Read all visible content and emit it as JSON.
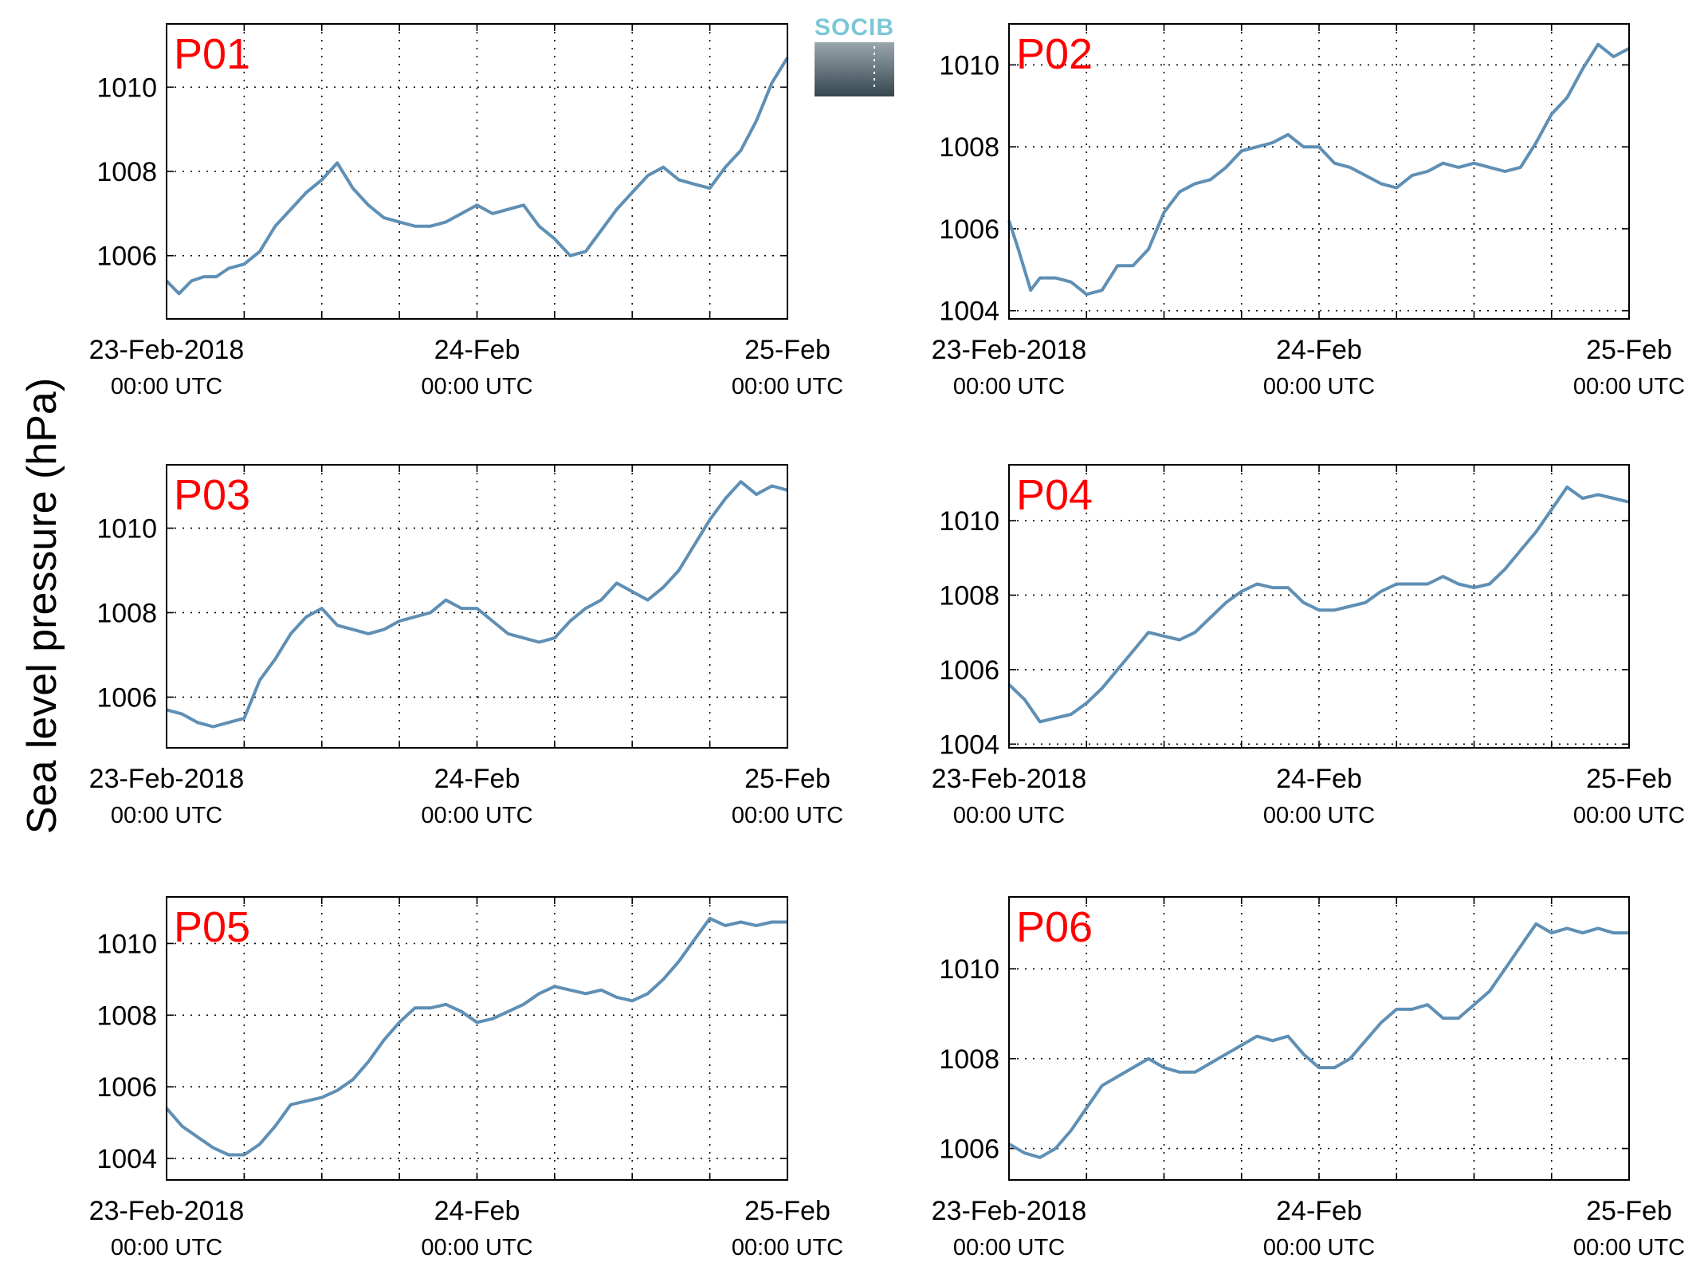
{
  "figure": {
    "ylabel": "Sea level pressure (hPa)",
    "logo_text": "SOCIB"
  },
  "colors": {
    "line": "#5f8fb4",
    "panel_label": "#ff0000",
    "grid": "#000000",
    "logo_text": "#7cc7d6",
    "logo_top": "#9aa7ad",
    "logo_bottom": "#35464f"
  },
  "chart_data": [
    {
      "type": "line",
      "label": "P01",
      "ylim": [
        1004.5,
        1011.5
      ],
      "yticks": [
        1006,
        1008,
        1010
      ],
      "x_days": [
        0,
        0.04,
        0.08,
        0.12,
        0.16,
        0.2,
        0.25,
        0.3,
        0.35,
        0.4,
        0.45,
        0.5,
        0.55,
        0.6,
        0.65,
        0.7,
        0.75,
        0.8,
        0.85,
        0.9,
        0.95,
        1.0,
        1.05,
        1.1,
        1.15,
        1.2,
        1.25,
        1.3,
        1.35,
        1.4,
        1.45,
        1.5,
        1.55,
        1.6,
        1.65,
        1.7,
        1.75,
        1.8,
        1.85,
        1.9,
        1.95,
        2.0
      ],
      "values": [
        1005.4,
        1005.1,
        1005.4,
        1005.5,
        1005.5,
        1005.7,
        1005.8,
        1006.1,
        1006.7,
        1007.1,
        1007.5,
        1007.8,
        1008.2,
        1007.6,
        1007.2,
        1006.9,
        1006.8,
        1006.7,
        1006.7,
        1006.8,
        1007.0,
        1007.2,
        1007.0,
        1007.1,
        1007.2,
        1006.7,
        1006.4,
        1006.0,
        1006.1,
        1006.6,
        1007.1,
        1007.5,
        1007.9,
        1008.1,
        1007.8,
        1007.7,
        1007.6,
        1008.1,
        1008.5,
        1009.2,
        1010.1,
        1010.7
      ],
      "x_ticks": [
        {
          "line1": "23-Feb-2018",
          "line2": "00:00 UTC"
        },
        {
          "line1": "24-Feb",
          "line2": "00:00 UTC"
        },
        {
          "line1": "25-Feb",
          "line2": "00:00 UTC"
        }
      ]
    },
    {
      "type": "line",
      "label": "P02",
      "ylim": [
        1003.8,
        1011.0
      ],
      "yticks": [
        1004,
        1006,
        1008,
        1010
      ],
      "x_days": [
        0,
        0.03,
        0.07,
        0.1,
        0.15,
        0.2,
        0.25,
        0.3,
        0.35,
        0.4,
        0.45,
        0.5,
        0.55,
        0.6,
        0.65,
        0.7,
        0.75,
        0.8,
        0.85,
        0.9,
        0.95,
        1.0,
        1.05,
        1.1,
        1.15,
        1.2,
        1.25,
        1.3,
        1.35,
        1.4,
        1.45,
        1.5,
        1.55,
        1.6,
        1.65,
        1.7,
        1.75,
        1.8,
        1.85,
        1.9,
        1.95,
        2.0
      ],
      "values": [
        1006.2,
        1005.5,
        1004.5,
        1004.8,
        1004.8,
        1004.7,
        1004.4,
        1004.5,
        1005.1,
        1005.1,
        1005.5,
        1006.4,
        1006.9,
        1007.1,
        1007.2,
        1007.5,
        1007.9,
        1008.0,
        1008.1,
        1008.3,
        1008.0,
        1008.0,
        1007.6,
        1007.5,
        1007.3,
        1007.1,
        1007.0,
        1007.3,
        1007.4,
        1007.6,
        1007.5,
        1007.6,
        1007.5,
        1007.4,
        1007.5,
        1008.1,
        1008.8,
        1009.2,
        1009.9,
        1010.5,
        1010.2,
        1010.4
      ],
      "x_ticks": [
        {
          "line1": "23-Feb-2018",
          "line2": "00:00 UTC"
        },
        {
          "line1": "24-Feb",
          "line2": "00:00 UTC"
        },
        {
          "line1": "25-Feb",
          "line2": "00:00 UTC"
        }
      ]
    },
    {
      "type": "line",
      "label": "P03",
      "ylim": [
        1004.8,
        1011.5
      ],
      "yticks": [
        1006,
        1008,
        1010
      ],
      "x_days": [
        0,
        0.05,
        0.1,
        0.15,
        0.2,
        0.25,
        0.3,
        0.35,
        0.4,
        0.45,
        0.5,
        0.55,
        0.6,
        0.65,
        0.7,
        0.75,
        0.8,
        0.85,
        0.9,
        0.95,
        1.0,
        1.05,
        1.1,
        1.15,
        1.2,
        1.25,
        1.3,
        1.35,
        1.4,
        1.45,
        1.5,
        1.55,
        1.6,
        1.65,
        1.7,
        1.75,
        1.8,
        1.85,
        1.9,
        1.95,
        2.0
      ],
      "values": [
        1005.7,
        1005.6,
        1005.4,
        1005.3,
        1005.4,
        1005.5,
        1006.4,
        1006.9,
        1007.5,
        1007.9,
        1008.1,
        1007.7,
        1007.6,
        1007.5,
        1007.6,
        1007.8,
        1007.9,
        1008.0,
        1008.3,
        1008.1,
        1008.1,
        1007.8,
        1007.5,
        1007.4,
        1007.3,
        1007.4,
        1007.8,
        1008.1,
        1008.3,
        1008.7,
        1008.5,
        1008.3,
        1008.6,
        1009.0,
        1009.6,
        1010.2,
        1010.7,
        1011.1,
        1010.8,
        1011.0,
        1010.9
      ],
      "x_ticks": [
        {
          "line1": "23-Feb-2018",
          "line2": "00:00 UTC"
        },
        {
          "line1": "24-Feb",
          "line2": "00:00 UTC"
        },
        {
          "line1": "25-Feb",
          "line2": "00:00 UTC"
        }
      ]
    },
    {
      "type": "line",
      "label": "P04",
      "ylim": [
        1003.9,
        1011.5
      ],
      "yticks": [
        1004,
        1006,
        1008,
        1010
      ],
      "x_days": [
        0,
        0.05,
        0.1,
        0.15,
        0.2,
        0.25,
        0.3,
        0.35,
        0.4,
        0.45,
        0.5,
        0.55,
        0.6,
        0.65,
        0.7,
        0.75,
        0.8,
        0.85,
        0.9,
        0.95,
        1.0,
        1.05,
        1.1,
        1.15,
        1.2,
        1.25,
        1.3,
        1.35,
        1.4,
        1.45,
        1.5,
        1.55,
        1.6,
        1.65,
        1.7,
        1.75,
        1.8,
        1.85,
        1.9,
        1.95,
        2.0
      ],
      "values": [
        1005.6,
        1005.2,
        1004.6,
        1004.7,
        1004.8,
        1005.1,
        1005.5,
        1006.0,
        1006.5,
        1007.0,
        1006.9,
        1006.8,
        1007.0,
        1007.4,
        1007.8,
        1008.1,
        1008.3,
        1008.2,
        1008.2,
        1007.8,
        1007.6,
        1007.6,
        1007.7,
        1007.8,
        1008.1,
        1008.3,
        1008.3,
        1008.3,
        1008.5,
        1008.3,
        1008.2,
        1008.3,
        1008.7,
        1009.2,
        1009.7,
        1010.3,
        1010.9,
        1010.6,
        1010.7,
        1010.6,
        1010.5
      ],
      "x_ticks": [
        {
          "line1": "23-Feb-2018",
          "line2": "00:00 UTC"
        },
        {
          "line1": "24-Feb",
          "line2": "00:00 UTC"
        },
        {
          "line1": "25-Feb",
          "line2": "00:00 UTC"
        }
      ]
    },
    {
      "type": "line",
      "label": "P05",
      "ylim": [
        1003.4,
        1011.3
      ],
      "yticks": [
        1004,
        1006,
        1008,
        1010
      ],
      "x_days": [
        0,
        0.05,
        0.1,
        0.15,
        0.2,
        0.25,
        0.3,
        0.35,
        0.4,
        0.45,
        0.5,
        0.55,
        0.6,
        0.65,
        0.7,
        0.75,
        0.8,
        0.85,
        0.9,
        0.95,
        1.0,
        1.05,
        1.1,
        1.15,
        1.2,
        1.25,
        1.3,
        1.35,
        1.4,
        1.45,
        1.5,
        1.55,
        1.6,
        1.65,
        1.7,
        1.75,
        1.8,
        1.85,
        1.9,
        1.95,
        2.0
      ],
      "values": [
        1005.4,
        1004.9,
        1004.6,
        1004.3,
        1004.1,
        1004.1,
        1004.4,
        1004.9,
        1005.5,
        1005.6,
        1005.7,
        1005.9,
        1006.2,
        1006.7,
        1007.3,
        1007.8,
        1008.2,
        1008.2,
        1008.3,
        1008.1,
        1007.8,
        1007.9,
        1008.1,
        1008.3,
        1008.6,
        1008.8,
        1008.7,
        1008.6,
        1008.7,
        1008.5,
        1008.4,
        1008.6,
        1009.0,
        1009.5,
        1010.1,
        1010.7,
        1010.5,
        1010.6,
        1010.5,
        1010.6,
        1010.6
      ],
      "x_ticks": [
        {
          "line1": "23-Feb-2018",
          "line2": "00:00 UTC"
        },
        {
          "line1": "24-Feb",
          "line2": "00:00 UTC"
        },
        {
          "line1": "25-Feb",
          "line2": "00:00 UTC"
        }
      ]
    },
    {
      "type": "line",
      "label": "P06",
      "ylim": [
        1005.3,
        1011.6
      ],
      "yticks": [
        1006,
        1008,
        1010
      ],
      "x_days": [
        0,
        0.05,
        0.1,
        0.15,
        0.2,
        0.25,
        0.3,
        0.35,
        0.4,
        0.45,
        0.5,
        0.55,
        0.6,
        0.65,
        0.7,
        0.75,
        0.8,
        0.85,
        0.9,
        0.95,
        1.0,
        1.05,
        1.1,
        1.15,
        1.2,
        1.25,
        1.3,
        1.35,
        1.4,
        1.45,
        1.5,
        1.55,
        1.6,
        1.65,
        1.7,
        1.75,
        1.8,
        1.85,
        1.9,
        1.95,
        2.0
      ],
      "values": [
        1006.1,
        1005.9,
        1005.8,
        1006.0,
        1006.4,
        1006.9,
        1007.4,
        1007.6,
        1007.8,
        1008.0,
        1007.8,
        1007.7,
        1007.7,
        1007.9,
        1008.1,
        1008.3,
        1008.5,
        1008.4,
        1008.5,
        1008.1,
        1007.8,
        1007.8,
        1008.0,
        1008.4,
        1008.8,
        1009.1,
        1009.1,
        1009.2,
        1008.9,
        1008.9,
        1009.2,
        1009.5,
        1010.0,
        1010.5,
        1011.0,
        1010.8,
        1010.9,
        1010.8,
        1010.9,
        1010.8,
        1010.8
      ],
      "x_ticks": [
        {
          "line1": "23-Feb-2018",
          "line2": "00:00 UTC"
        },
        {
          "line1": "24-Feb",
          "line2": "00:00 UTC"
        },
        {
          "line1": "25-Feb",
          "line2": "00:00 UTC"
        }
      ]
    }
  ]
}
